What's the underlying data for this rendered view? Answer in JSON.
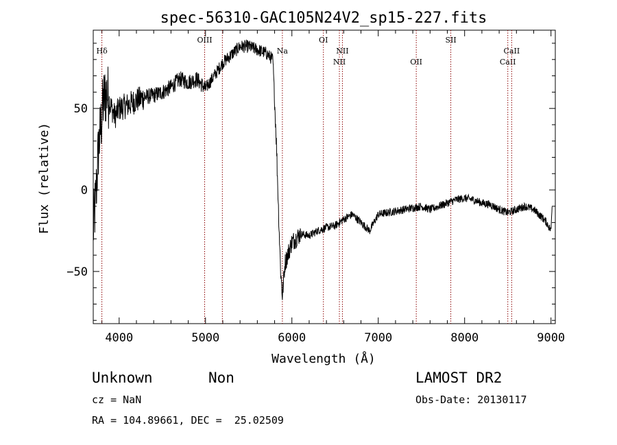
{
  "chart_data": {
    "type": "line",
    "title": "spec-56310-GAC105N24V2_sp15-227.fits",
    "xlabel": "Wavelength (Å)",
    "ylabel": "Flux (relative)",
    "xlim": [
      3700,
      9050
    ],
    "ylim": [
      -82,
      98
    ],
    "xticks": [
      4000,
      5000,
      6000,
      7000,
      8000,
      9000
    ],
    "yticks": [
      -50,
      0,
      50
    ],
    "grid": false,
    "line_color": "#000000",
    "marker_color": "#8b0000",
    "spectrum_anchors": {
      "x": [
        3700,
        3730,
        3760,
        3790,
        3820,
        3860,
        3900,
        3950,
        4000,
        4100,
        4200,
        4300,
        4400,
        4500,
        4600,
        4700,
        4800,
        4900,
        5000,
        5100,
        5200,
        5300,
        5400,
        5500,
        5600,
        5700,
        5780,
        5820,
        5850,
        5870,
        5890,
        5920,
        5950,
        6000,
        6100,
        6200,
        6300,
        6400,
        6500,
        6600,
        6700,
        6800,
        6900,
        7000,
        7100,
        7200,
        7300,
        7400,
        7500,
        7600,
        7700,
        7800,
        7900,
        8000,
        8100,
        8200,
        8300,
        8400,
        8500,
        8600,
        8700,
        8800,
        8900,
        8950,
        9000,
        9020
      ],
      "y": [
        -25,
        -5,
        25,
        40,
        55,
        60,
        52,
        45,
        50,
        52,
        55,
        57,
        58,
        60,
        63,
        68,
        66,
        68,
        62,
        70,
        78,
        83,
        88,
        88,
        86,
        84,
        80,
        30,
        -20,
        -50,
        -65,
        -45,
        -40,
        -32,
        -27,
        -28,
        -25,
        -23,
        -22,
        -18,
        -15,
        -20,
        -25,
        -15,
        -14,
        -13,
        -12,
        -11,
        -10,
        -12,
        -10,
        -8,
        -6,
        -5,
        -6,
        -8,
        -9,
        -12,
        -14,
        -12,
        -10,
        -12,
        -17,
        -20,
        -25,
        0
      ]
    },
    "spectral_lines": [
      {
        "label": "Hδ",
        "x": 3800,
        "row": 0
      },
      {
        "label": "OIII",
        "x": 4990,
        "row": 1
      },
      {
        "label": "",
        "x": 5195,
        "row": 0
      },
      {
        "label": "Na",
        "x": 5890,
        "row": 0
      },
      {
        "label": "OI",
        "x": 6365,
        "row": 1
      },
      {
        "label": "NII",
        "x": 6550,
        "row": 2
      },
      {
        "label": "NII",
        "x": 6585,
        "row": 0
      },
      {
        "label": "OII",
        "x": 7440,
        "row": 2
      },
      {
        "label": "SII",
        "x": 7840,
        "row": 1
      },
      {
        "label": "CaII",
        "x": 8500,
        "row": 2
      },
      {
        "label": "CaII",
        "x": 8545,
        "row": 0
      }
    ]
  },
  "info": {
    "classification": "Unknown",
    "subclass": "Non",
    "cz": "cz = NaN",
    "coords": "RA = 104.89661, DEC =  25.02509",
    "survey": "LAMOST DR2",
    "obs_date": "Obs-Date: 20130117"
  }
}
